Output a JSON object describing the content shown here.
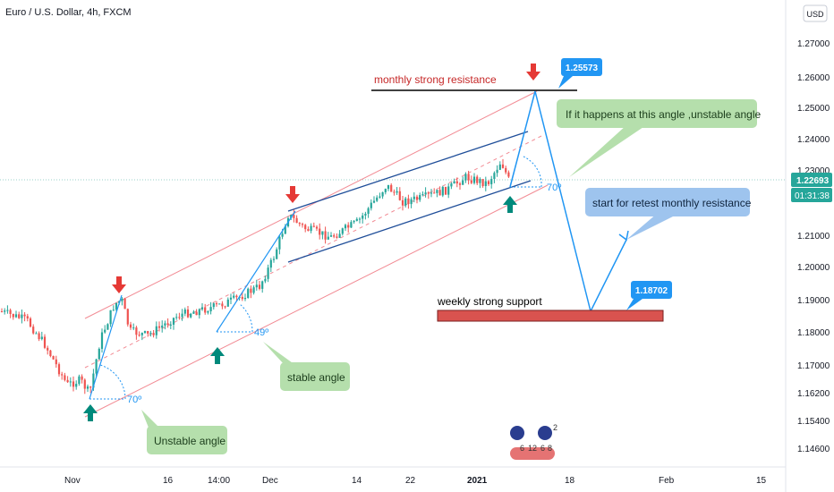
{
  "header": {
    "symbol_title": "Euro / U.S. Dollar, 4h, FXCM",
    "currency_button": "USD"
  },
  "price_axis": {
    "ticks": [
      "1.27000",
      "1.26000",
      "1.25000",
      "1.24000",
      "1.23000",
      "1.21000",
      "1.20000",
      "1.19000",
      "1.18000",
      "1.17000",
      "1.16200",
      "1.15400",
      "1.14600"
    ],
    "current_price": "1.22693",
    "countdown": "01:31:38"
  },
  "time_axis": {
    "ticks": [
      "Nov",
      "16",
      "14:00",
      "Dec",
      "14",
      "22",
      "2021",
      "18",
      "Feb",
      "15"
    ]
  },
  "annotations": {
    "monthly_resistance": "monthly strong resistance",
    "resistance_price": "1.25573",
    "weekly_support": "weekly strong support",
    "support_price": "1.18702",
    "unstable_angle_note": "If it happens at this angle ,unstable angle",
    "retest_note": "start for retest monthly resistance",
    "stable_angle": "stable angle",
    "unstable_angle": "Unstable angle",
    "angle_70_left": "70º",
    "angle_49": "49º",
    "angle_70_right": "70º"
  },
  "events": {
    "count_a": "6",
    "count_b": "12",
    "count_c": "6",
    "count_d": "8",
    "count_e": "2"
  },
  "colors": {
    "bull": "#26a69a",
    "bear": "#ef5350",
    "channel_red": "#f28b94",
    "channel_blue": "#1f4e99",
    "path_blue": "#2196f3",
    "green_note": "#b5dfac",
    "blue_note": "#9ec4ee",
    "support_fill": "#d9534f"
  },
  "chart_data": {
    "type": "candlestick",
    "y_range": [
      1.142,
      1.281
    ],
    "projection_path": [
      {
        "label": "start",
        "price": 1.2265
      },
      {
        "label": "resistance",
        "price": 1.25573
      },
      {
        "label": "support",
        "price": 1.18702
      },
      {
        "label": "retest",
        "price": 1.212
      }
    ]
  }
}
